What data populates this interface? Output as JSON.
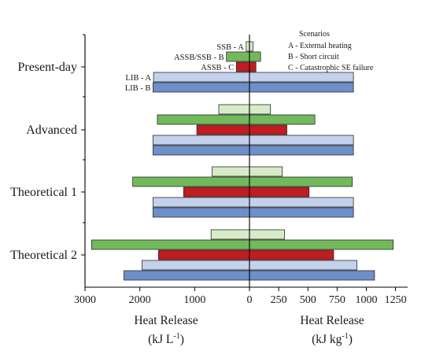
{
  "chart_data": {
    "type": "bar",
    "orientation": "horizontal",
    "layout": "butterfly",
    "categories": [
      "Present-day",
      "Advanced",
      "Theoretical 1",
      "Theoretical 2"
    ],
    "legend": {
      "title": "Scenarios",
      "items": [
        "A - External heating",
        "B - Short circuit",
        "C - Catastrophic SE failure"
      ]
    },
    "series": [
      {
        "name": "SSB - A",
        "color": "#d7ebc7",
        "left_values": [
          60,
          560,
          680,
          700
        ],
        "right_values": [
          30,
          180,
          280,
          300
        ]
      },
      {
        "name": "ASSB/SSB - B",
        "color": "#72b95c",
        "left_values": [
          420,
          1680,
          2130,
          2880
        ],
        "right_values": [
          95,
          560,
          880,
          1230
        ]
      },
      {
        "name": "ASSB - C",
        "color": "#c01c21",
        "left_values": [
          240,
          960,
          1200,
          1660
        ],
        "right_values": [
          55,
          320,
          510,
          720
        ]
      },
      {
        "name": "LIB - A",
        "color": "#c3d1ea",
        "left_values": [
          1750,
          1760,
          1760,
          1960
        ],
        "right_values": [
          890,
          890,
          890,
          920
        ]
      },
      {
        "name": "LIB - B",
        "color": "#6e8fc9",
        "left_values": [
          1760,
          1760,
          1760,
          2290
        ],
        "right_values": [
          890,
          890,
          890,
          1070
        ]
      }
    ],
    "left_axis": {
      "ticks": [
        3000,
        2000,
        1000,
        0
      ],
      "range": [
        0,
        3000
      ],
      "title": "Heat Release",
      "unit": "(kJ L",
      "unit_exp": "-1",
      "unit_close": ")"
    },
    "right_axis": {
      "ticks": [
        0,
        250,
        500,
        750,
        1000,
        1250
      ],
      "range": [
        0,
        1300
      ],
      "title": "Heat Release",
      "unit": "(kJ kg",
      "unit_exp": "-1",
      "unit_close": ")"
    },
    "bar_labels": [
      "SSB - A",
      "ASSB/SSB - B",
      "ASSB - C",
      "LIB - A",
      "LIB - B"
    ],
    "grid": false
  }
}
